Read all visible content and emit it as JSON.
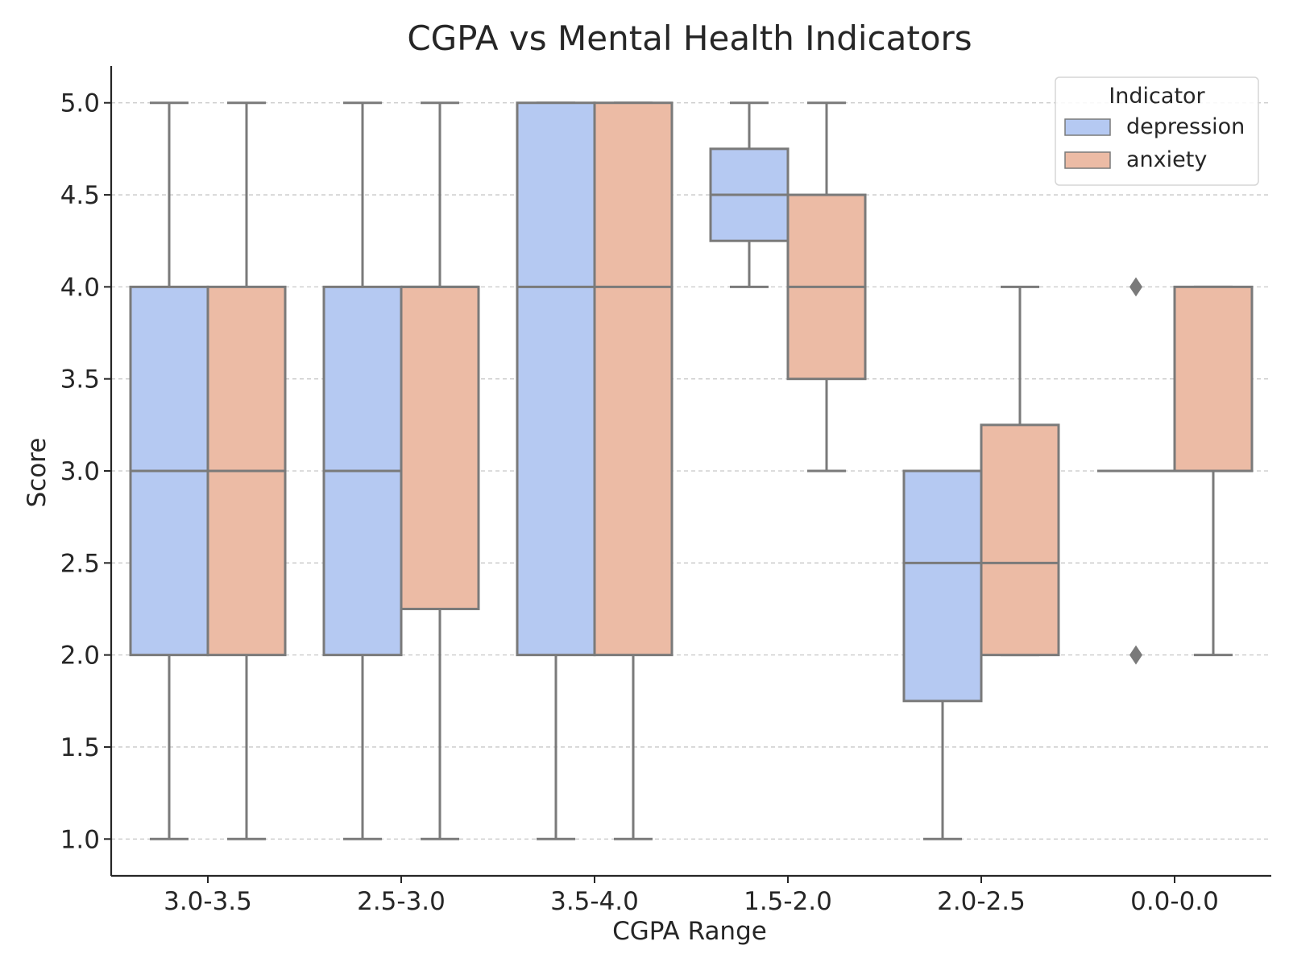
{
  "chart_data": {
    "type": "box",
    "title": "CGPA vs Mental Health Indicators",
    "xlabel": "CGPA Range",
    "ylabel": "Score",
    "ylim": [
      0.8,
      5.2
    ],
    "yticks": [
      "1.0",
      "1.5",
      "2.0",
      "2.5",
      "3.0",
      "3.5",
      "4.0",
      "4.5",
      "5.0"
    ],
    "grid": "horizontal dashed",
    "categories": [
      "3.0-3.5",
      "2.5-3.0",
      "3.5-4.0",
      "1.5-2.0",
      "2.0-2.5",
      "0.0-0.0"
    ],
    "legend": {
      "title": "Indicator",
      "position": "top-right"
    },
    "series": [
      {
        "name": "depression",
        "color": "#b5c9f2",
        "boxes": [
          {
            "whislo": 1.0,
            "q1": 2.0,
            "med": 3.0,
            "q3": 4.0,
            "whishi": 5.0,
            "fliers": []
          },
          {
            "whislo": 1.0,
            "q1": 2.0,
            "med": 3.0,
            "q3": 4.0,
            "whishi": 5.0,
            "fliers": []
          },
          {
            "whislo": 1.0,
            "q1": 2.0,
            "med": 4.0,
            "q3": 5.0,
            "whishi": 5.0,
            "fliers": []
          },
          {
            "whislo": 4.0,
            "q1": 4.25,
            "med": 4.5,
            "q3": 4.75,
            "whishi": 5.0,
            "fliers": []
          },
          {
            "whislo": 1.0,
            "q1": 1.75,
            "med": 2.5,
            "q3": 3.0,
            "whishi": 3.0,
            "fliers": []
          },
          {
            "whislo": 3.0,
            "q1": 3.0,
            "med": 3.0,
            "q3": 3.0,
            "whishi": 3.0,
            "fliers": [
              4.0,
              2.0
            ]
          }
        ]
      },
      {
        "name": "anxiety",
        "color": "#ecbba5",
        "boxes": [
          {
            "whislo": 1.0,
            "q1": 2.0,
            "med": 3.0,
            "q3": 4.0,
            "whishi": 5.0,
            "fliers": []
          },
          {
            "whislo": 1.0,
            "q1": 2.25,
            "med": 4.0,
            "q3": 4.0,
            "whishi": 5.0,
            "fliers": []
          },
          {
            "whislo": 1.0,
            "q1": 2.0,
            "med": 4.0,
            "q3": 5.0,
            "whishi": 5.0,
            "fliers": []
          },
          {
            "whislo": 3.0,
            "q1": 3.5,
            "med": 4.0,
            "q3": 4.5,
            "whishi": 5.0,
            "fliers": []
          },
          {
            "whislo": 2.0,
            "q1": 2.0,
            "med": 2.5,
            "q3": 3.25,
            "whishi": 4.0,
            "fliers": []
          },
          {
            "whislo": 2.0,
            "q1": 3.0,
            "med": 3.0,
            "q3": 4.0,
            "whishi": 4.0,
            "fliers": []
          }
        ]
      }
    ]
  }
}
